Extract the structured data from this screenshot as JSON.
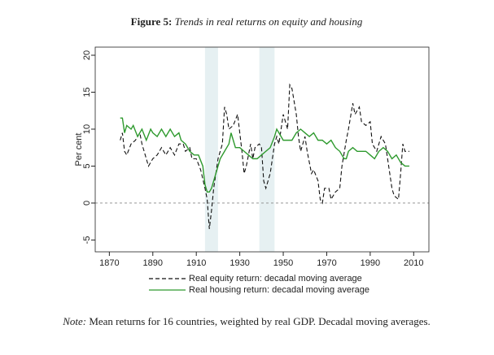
{
  "chart_data": {
    "type": "line",
    "figure_label": "Figure 5:",
    "title": "Trends in real returns on equity and housing",
    "ylabel": "Per cent",
    "note_label": "Note:",
    "note": "Mean returns for 16 countries, weighted by real GDP. Decadal moving averages.",
    "xlim": [
      1863.5,
      2017
    ],
    "ylim": [
      -6.6,
      21.1
    ],
    "xticks": [
      1870,
      1890,
      1910,
      1930,
      1950,
      1970,
      1990,
      2010
    ],
    "yticks": [
      -5,
      0,
      5,
      10,
      15,
      20
    ],
    "reference_line": 0,
    "shaded": [
      [
        1914,
        1920
      ],
      [
        1939,
        1946
      ]
    ],
    "shade_color": "#e6f0f2",
    "series": [
      {
        "name": "Real equity return: decadal moving average",
        "color": "#111111",
        "dashed": true,
        "x": [
          1875,
          1876,
          1877,
          1878,
          1880,
          1882,
          1884,
          1885,
          1887,
          1888,
          1890,
          1892,
          1894,
          1896,
          1898,
          1900,
          1902,
          1904,
          1905,
          1907,
          1908,
          1910,
          1912,
          1914,
          1915,
          1916,
          1917,
          1918,
          1919,
          1920,
          1922,
          1923,
          1924,
          1925,
          1927,
          1929,
          1931,
          1932,
          1933,
          1935,
          1936,
          1937,
          1939,
          1940,
          1941,
          1942,
          1944,
          1946,
          1947,
          1948,
          1950,
          1952,
          1953,
          1954,
          1956,
          1957,
          1958,
          1960,
          1961,
          1963,
          1964,
          1966,
          1967,
          1968,
          1969,
          1971,
          1972,
          1974,
          1976,
          1977,
          1979,
          1980,
          1982,
          1983,
          1985,
          1986,
          1988,
          1990,
          1991,
          1993,
          1995,
          1997,
          1998,
          2000,
          2001,
          2003,
          2004,
          2005,
          2006,
          2008
        ],
        "values": [
          8.5,
          9.5,
          7,
          6.5,
          8,
          8.5,
          9.5,
          8,
          6,
          5,
          6,
          6.5,
          7.5,
          6.5,
          7.5,
          6.5,
          8,
          8,
          7,
          7.5,
          6,
          6,
          4.5,
          2,
          0.5,
          -3.5,
          -1,
          2,
          4,
          6,
          8,
          13,
          12,
          10,
          10.5,
          12,
          7,
          4,
          5,
          8,
          6,
          7.5,
          8,
          7.5,
          3,
          2,
          4,
          8,
          9,
          8,
          12,
          10,
          16,
          15.5,
          12,
          9,
          7,
          9,
          7,
          4,
          4.5,
          3,
          0.5,
          0,
          2,
          2,
          0.5,
          1.5,
          2,
          5,
          8.5,
          10,
          13.5,
          12,
          13,
          11,
          10.5,
          11,
          8,
          7,
          9,
          8,
          6,
          2,
          1,
          0.5,
          4,
          8,
          7,
          7
        ]
      },
      {
        "name": "Real housing return: decadal moving average",
        "color": "#2e9a2e",
        "dashed": false,
        "x": [
          1875,
          1876,
          1877,
          1878,
          1880,
          1881,
          1883,
          1885,
          1887,
          1889,
          1890,
          1892,
          1894,
          1896,
          1898,
          1900,
          1902,
          1903,
          1905,
          1907,
          1909,
          1911,
          1913,
          1914,
          1915,
          1916,
          1917,
          1918,
          1919,
          1921,
          1923,
          1925,
          1926,
          1927,
          1928,
          1930,
          1932,
          1934,
          1936,
          1938,
          1940,
          1942,
          1944,
          1946,
          1947,
          1948,
          1950,
          1952,
          1954,
          1956,
          1958,
          1960,
          1962,
          1964,
          1966,
          1968,
          1970,
          1972,
          1974,
          1976,
          1978,
          1979,
          1980,
          1982,
          1984,
          1986,
          1988,
          1990,
          1992,
          1994,
          1996,
          1998,
          2000,
          2002,
          2004,
          2006,
          2008
        ],
        "values": [
          11.5,
          11.5,
          9.5,
          10.5,
          10,
          10.5,
          9,
          10,
          8.5,
          10,
          9.5,
          9,
          10,
          9,
          10,
          9,
          9.5,
          8.5,
          8,
          7,
          6.5,
          6.5,
          5,
          2.5,
          1.5,
          1.5,
          2,
          3,
          4,
          6,
          7,
          8,
          9.5,
          8.5,
          7.5,
          7.5,
          7,
          6.5,
          6,
          6,
          6.5,
          7,
          7.5,
          9,
          10,
          9.5,
          8.5,
          8.5,
          8.5,
          9.5,
          10,
          9.5,
          9,
          9.5,
          8.5,
          8.5,
          8,
          8.5,
          7.5,
          7,
          6,
          6,
          7,
          7.5,
          7,
          7,
          7,
          6.5,
          6,
          7,
          7.5,
          7,
          6,
          6.5,
          5.5,
          5,
          5
        ]
      }
    ]
  }
}
